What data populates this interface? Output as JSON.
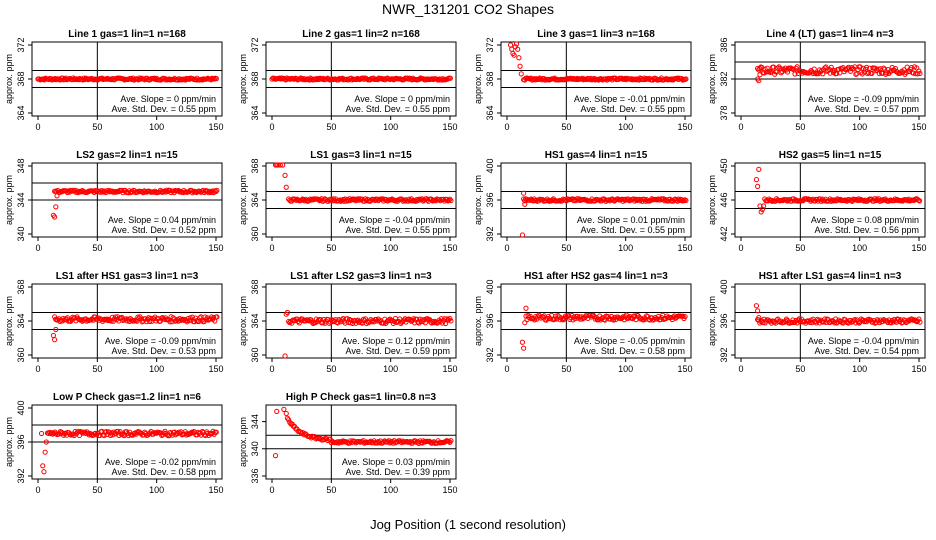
{
  "title": "NWR_131201  CO2 Shapes",
  "x_caption": "Jog Position (1 second resolution)",
  "colors": {
    "points": "#ff0000",
    "axes": "#000000"
  },
  "chart_data": [
    {
      "type": "scatter",
      "title": "Line 1 gas=1 lin=1 n=168",
      "ylabel": "approx. ppm",
      "xlim": [
        0,
        150
      ],
      "ylim": [
        364,
        372
      ],
      "yticks": [
        364,
        368,
        372
      ],
      "xticks": [
        0,
        50,
        100,
        150
      ],
      "hlines": [
        367,
        369
      ],
      "vline": 50,
      "slope": "Ave. Slope = 0  ppm/min",
      "sd": "Ave. Std. Dev. = 0.55  ppm",
      "x_start": 0,
      "base": 368,
      "noise": 0.12,
      "spikes": []
    },
    {
      "type": "scatter",
      "title": "Line 2 gas=1 lin=2 n=168",
      "ylabel": "approx. ppm",
      "xlim": [
        0,
        150
      ],
      "ylim": [
        364,
        372
      ],
      "yticks": [
        364,
        368,
        372
      ],
      "xticks": [
        0,
        50,
        100,
        150
      ],
      "hlines": [
        367,
        369
      ],
      "vline": 50,
      "slope": "Ave. Slope = 0  ppm/min",
      "sd": "Ave. Std. Dev. = 0.55  ppm",
      "x_start": 0,
      "base": 368,
      "noise": 0.12,
      "spikes": []
    },
    {
      "type": "scatter",
      "title": "Line 3 gas=1 lin=3 n=168",
      "ylabel": "approx. ppm",
      "xlim": [
        0,
        150
      ],
      "ylim": [
        364,
        372
      ],
      "yticks": [
        364,
        368,
        372
      ],
      "xticks": [
        0,
        50,
        100,
        150
      ],
      "hlines": [
        367,
        369
      ],
      "vline": 50,
      "slope": "Ave. Slope = -0.01  ppm/min",
      "sd": "Ave. Std. Dev. = 0.55  ppm",
      "x_start": 14,
      "base": 368,
      "noise": 0.12,
      "spikes": [
        [
          3,
          372
        ],
        [
          4,
          371.5
        ],
        [
          5,
          371
        ],
        [
          6,
          370.8
        ],
        [
          7,
          371.8
        ],
        [
          8,
          372.2
        ],
        [
          9,
          371.5
        ],
        [
          10,
          370.5
        ],
        [
          11,
          369.5
        ],
        [
          12,
          368.6
        ]
      ]
    },
    {
      "type": "scatter",
      "title": "Line 4 (LT) gas=1 lin=4 n=3",
      "ylabel": "approx. ppm",
      "xlim": [
        0,
        150
      ],
      "ylim": [
        378,
        386
      ],
      "yticks": [
        378,
        382,
        386
      ],
      "xticks": [
        0,
        50,
        100,
        150
      ],
      "hlines": [
        382,
        384
      ],
      "vline": 50,
      "slope": "Ave. Slope = -0.09  ppm/min",
      "sd": "Ave. Std. Dev. = 0.57  ppm",
      "x_start": 14,
      "base": 383,
      "noise": 0.45,
      "spikes": [
        [
          14,
          382
        ],
        [
          15,
          381.8
        ],
        [
          16,
          382.5
        ]
      ]
    },
    {
      "type": "scatter",
      "title": "LS2 gas=2 lin=1 n=15",
      "ylabel": "approx. ppm",
      "xlim": [
        0,
        150
      ],
      "ylim": [
        340,
        348
      ],
      "yticks": [
        340,
        344,
        348
      ],
      "xticks": [
        0,
        50,
        100,
        150
      ],
      "hlines": [
        344,
        346
      ],
      "vline": 50,
      "slope": "Ave. Slope = 0.04  ppm/min",
      "sd": "Ave. Std. Dev. = 0.52  ppm",
      "x_start": 14,
      "base": 345,
      "noise": 0.15,
      "spikes": [
        [
          13,
          342.2
        ],
        [
          14,
          342
        ],
        [
          15,
          343.2
        ],
        [
          16,
          344.5
        ]
      ]
    },
    {
      "type": "scatter",
      "title": "LS1 gas=3 lin=1 n=15",
      "ylabel": "approx. ppm",
      "xlim": [
        0,
        150
      ],
      "ylim": [
        360,
        368
      ],
      "yticks": [
        360,
        364,
        368
      ],
      "xticks": [
        0,
        50,
        100,
        150
      ],
      "hlines": [
        363,
        365
      ],
      "vline": 50,
      "slope": "Ave. Slope = -0.04  ppm/min",
      "sd": "Ave. Std. Dev. = 0.55  ppm",
      "x_start": 14,
      "base": 364,
      "noise": 0.15,
      "spikes": [
        [
          3,
          368.5
        ],
        [
          4,
          368.9
        ],
        [
          5,
          368.7
        ],
        [
          7,
          369
        ],
        [
          9,
          368.5
        ],
        [
          11,
          366.9
        ],
        [
          12,
          365.5
        ]
      ]
    },
    {
      "type": "scatter",
      "title": "HS1 gas=4 lin=1 n=15",
      "ylabel": "approx. ppm",
      "xlim": [
        0,
        150
      ],
      "ylim": [
        392,
        400
      ],
      "yticks": [
        392,
        396,
        400
      ],
      "xticks": [
        0,
        50,
        100,
        150
      ],
      "hlines": [
        395,
        397
      ],
      "vline": 50,
      "slope": "Ave. Slope = 0.01  ppm/min",
      "sd": "Ave. Std. Dev. = 0.55  ppm",
      "x_start": 14,
      "base": 396,
      "noise": 0.15,
      "spikes": [
        [
          13,
          391.2
        ],
        [
          14,
          396.8
        ],
        [
          15,
          395.5
        ]
      ]
    },
    {
      "type": "scatter",
      "title": "HS2 gas=5 lin=1 n=15",
      "ylabel": "approx. ppm",
      "xlim": [
        0,
        150
      ],
      "ylim": [
        442,
        450
      ],
      "yticks": [
        442,
        446,
        450
      ],
      "xticks": [
        0,
        50,
        100,
        150
      ],
      "hlines": [
        445,
        447
      ],
      "vline": 50,
      "slope": "Ave. Slope = 0.08  ppm/min",
      "sd": "Ave. Std. Dev. = 0.56  ppm",
      "x_start": 20,
      "base": 446,
      "noise": 0.15,
      "spikes": [
        [
          13,
          448.4
        ],
        [
          14,
          447.6
        ],
        [
          15,
          449.6
        ],
        [
          16,
          445.3
        ],
        [
          17,
          444.6
        ],
        [
          18,
          444.9
        ],
        [
          19,
          445.3
        ]
      ]
    },
    {
      "type": "scatter",
      "title": "LS1 after HS1 gas=3 lin=1 n=3",
      "ylabel": "approx. ppm",
      "xlim": [
        0,
        150
      ],
      "ylim": [
        360,
        368
      ],
      "yticks": [
        360,
        364,
        368
      ],
      "xticks": [
        0,
        50,
        100,
        150
      ],
      "hlines": [
        363,
        365
      ],
      "vline": 50,
      "slope": "Ave. Slope = -0.09  ppm/min",
      "sd": "Ave. Std. Dev. = 0.53  ppm",
      "x_start": 14,
      "base": 364.2,
      "noise": 0.3,
      "spikes": [
        [
          13,
          362.3
        ],
        [
          14,
          361.8
        ],
        [
          15,
          363
        ]
      ]
    },
    {
      "type": "scatter",
      "title": "LS1 after LS2 gas=3 lin=1 n=3",
      "ylabel": "approx. ppm",
      "xlim": [
        0,
        150
      ],
      "ylim": [
        360,
        368
      ],
      "yticks": [
        360,
        364,
        368
      ],
      "xticks": [
        0,
        50,
        100,
        150
      ],
      "hlines": [
        363,
        365
      ],
      "vline": 50,
      "slope": "Ave. Slope = 0.12  ppm/min",
      "sd": "Ave. Std. Dev. = 0.59  ppm",
      "x_start": 14,
      "base": 364,
      "noise": 0.3,
      "spikes": [
        [
          11,
          359.5
        ],
        [
          12,
          364.8
        ],
        [
          13,
          365
        ]
      ]
    },
    {
      "type": "scatter",
      "title": "HS1 after HS2 gas=4 lin=1 n=3",
      "ylabel": "approx. ppm",
      "xlim": [
        0,
        150
      ],
      "ylim": [
        392,
        400
      ],
      "yticks": [
        392,
        396,
        400
      ],
      "xticks": [
        0,
        50,
        100,
        150
      ],
      "hlines": [
        395,
        397
      ],
      "vline": 50,
      "slope": "Ave. Slope = -0.05  ppm/min",
      "sd": "Ave. Std. Dev. = 0.58  ppm",
      "x_start": 16,
      "base": 396.4,
      "noise": 0.3,
      "spikes": [
        [
          13,
          393.5
        ],
        [
          14,
          392.8
        ],
        [
          15,
          395.8
        ],
        [
          16,
          397.5
        ]
      ]
    },
    {
      "type": "scatter",
      "title": "HS1 after LS1 gas=4 lin=1 n=3",
      "ylabel": "approx. ppm",
      "xlim": [
        0,
        150
      ],
      "ylim": [
        392,
        400
      ],
      "yticks": [
        392,
        396,
        400
      ],
      "xticks": [
        0,
        50,
        100,
        150
      ],
      "hlines": [
        395,
        397
      ],
      "vline": 50,
      "slope": "Ave. Slope = -0.04  ppm/min",
      "sd": "Ave. Std. Dev. = 0.54  ppm",
      "x_start": 14,
      "base": 396,
      "noise": 0.25,
      "spikes": [
        [
          13,
          397.8
        ],
        [
          14,
          397.2
        ],
        [
          15,
          396.4
        ]
      ]
    },
    {
      "type": "scatter",
      "title": "Low P Check gas=1.2 lin=1 n=6",
      "ylabel": "approx. ppm",
      "xlim": [
        0,
        150
      ],
      "ylim": [
        392,
        400
      ],
      "yticks": [
        392,
        396,
        400
      ],
      "xticks": [
        0,
        50,
        100,
        150
      ],
      "hlines": [
        396,
        398
      ],
      "vline": 50,
      "slope": "Ave. Slope = -0.02  ppm/min",
      "sd": "Ave. Std. Dev. = 0.58  ppm",
      "x_start": 8,
      "base": 397,
      "noise": 0.25,
      "spikes": [
        [
          3,
          397
        ],
        [
          4,
          393.2
        ],
        [
          5,
          392.5
        ],
        [
          6,
          394.8
        ],
        [
          7,
          396
        ]
      ]
    },
    {
      "type": "scatter",
      "title": "High P Check gas=1 lin=0.8 n=3",
      "ylabel": "approx. ppm",
      "xlim": [
        0,
        150
      ],
      "ylim": [
        336,
        346
      ],
      "yticks": [
        336,
        340,
        344
      ],
      "xticks": [
        0,
        50,
        100,
        150
      ],
      "hlines": [
        340,
        342
      ],
      "vline": 50,
      "slope": "Ave. Slope = 0.03  ppm/min",
      "sd": "Ave. Std. Dev. = 0.39  ppm",
      "x_start": 50,
      "base": 341,
      "noise": 0.2,
      "spikes": [
        [
          3,
          339
        ],
        [
          4,
          345.5
        ],
        [
          10,
          345.8
        ],
        [
          12,
          345.2
        ],
        [
          13,
          344.5
        ]
      ],
      "decay": {
        "from_x": 14,
        "to_x": 50,
        "start_y": 344.2,
        "end_y": 341.2
      }
    }
  ]
}
